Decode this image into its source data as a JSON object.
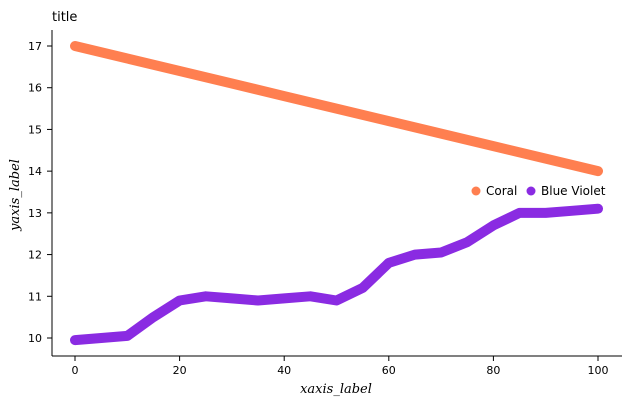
{
  "chart_data": {
    "type": "line",
    "title": "title",
    "xlabel": "xaxis_label",
    "ylabel": "yaxis_label",
    "xlim": [
      0,
      100
    ],
    "ylim": [
      10,
      17
    ],
    "xticks": [
      0,
      20,
      40,
      60,
      80,
      100
    ],
    "yticks": [
      10,
      11,
      12,
      13,
      14,
      15,
      16,
      17
    ],
    "grid": false,
    "legend": "right",
    "series": [
      {
        "name": "Coral",
        "color": "#FF7F50",
        "x": [
          0,
          10,
          20,
          30,
          40,
          50,
          60,
          70,
          80,
          90,
          100
        ],
        "y": [
          17.0,
          16.7,
          16.4,
          16.1,
          15.8,
          15.5,
          15.2,
          14.9,
          14.6,
          14.3,
          14.0
        ]
      },
      {
        "name": "Blue Violet",
        "color": "#8A2BE2",
        "x": [
          0,
          5,
          10,
          15,
          20,
          25,
          30,
          35,
          40,
          45,
          50,
          55,
          60,
          65,
          70,
          75,
          80,
          85,
          90,
          95,
          100
        ],
        "y": [
          9.95,
          10.0,
          10.05,
          10.5,
          10.9,
          11.0,
          10.95,
          10.9,
          10.95,
          11.0,
          10.9,
          11.2,
          11.8,
          12.0,
          12.05,
          12.3,
          12.7,
          13.0,
          13.0,
          13.05,
          13.1
        ]
      }
    ]
  }
}
